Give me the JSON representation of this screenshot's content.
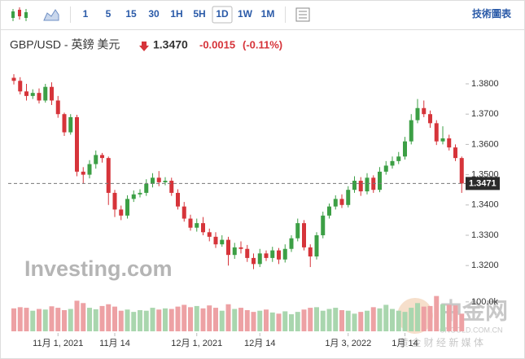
{
  "toolbar": {
    "intervals": [
      "1",
      "5",
      "15",
      "30",
      "1H",
      "5H",
      "1D",
      "1W",
      "1M"
    ],
    "active_interval": 6,
    "tools_label": "技術圖表"
  },
  "header": {
    "symbol": "GBP/USD - 英鎊 美元",
    "price": "1.3470",
    "change": "-0.0015",
    "change_pct": "(-0.11%)"
  },
  "watermarks": {
    "logo": "Investing.com",
    "site": "中金网",
    "site_url": "CNGOLD.COM.CN",
    "site_slogan": "黄 金 财 经 新 媒 体"
  },
  "chart_data": {
    "type": "candlestick",
    "categories": [
      null,
      null,
      null,
      null,
      null,
      null,
      null,
      "11月 1, 2021",
      null,
      null,
      null,
      null,
      null,
      null,
      null,
      null,
      "11月 14",
      null,
      null,
      null,
      null,
      null,
      null,
      null,
      null,
      null,
      null,
      null,
      null,
      "12月 1, 2021",
      null,
      null,
      null,
      null,
      null,
      null,
      null,
      null,
      null,
      "12月 14",
      null,
      null,
      null,
      null,
      null,
      null,
      null,
      null,
      null,
      null,
      null,
      null,
      null,
      "1月 3, 2022",
      null,
      null,
      null,
      null,
      null,
      null,
      null,
      null,
      "1月 14",
      null,
      null,
      null,
      null,
      null,
      null,
      null,
      null,
      null
    ],
    "open": [
      1.382,
      1.381,
      1.3775,
      1.376,
      1.377,
      1.3745,
      1.379,
      1.3745,
      1.37,
      1.364,
      1.369,
      1.351,
      1.35,
      1.3535,
      1.3565,
      1.3555,
      1.344,
      1.3385,
      1.3365,
      1.342,
      1.3435,
      1.344,
      1.347,
      1.349,
      1.3475,
      1.348,
      1.344,
      1.3395,
      1.3355,
      1.3325,
      1.334,
      1.331,
      1.3295,
      1.327,
      1.3285,
      1.3235,
      1.326,
      1.3255,
      1.3225,
      1.3205,
      1.324,
      1.3225,
      1.325,
      1.322,
      1.3255,
      1.329,
      1.334,
      1.326,
      1.323,
      1.33,
      1.3365,
      1.3395,
      1.342,
      1.34,
      1.345,
      1.348,
      1.3445,
      1.349,
      1.345,
      1.351,
      1.353,
      1.3545,
      1.356,
      1.361,
      1.368,
      1.372,
      1.37,
      1.367,
      1.361,
      1.362,
      1.359,
      1.3555
    ],
    "high": [
      1.3832,
      1.3822,
      1.38,
      1.3782,
      1.3785,
      1.38,
      1.3805,
      1.376,
      1.3705,
      1.37,
      1.3698,
      1.3525,
      1.3548,
      1.358,
      1.3572,
      1.356,
      1.345,
      1.3398,
      1.3432,
      1.3448,
      1.3452,
      1.3485,
      1.3505,
      1.3512,
      1.3492,
      1.349,
      1.3452,
      1.341,
      1.3368,
      1.3355,
      1.336,
      1.3322,
      1.331,
      1.33,
      1.3295,
      1.3275,
      1.328,
      1.3268,
      1.324,
      1.3255,
      1.325,
      1.3262,
      1.3258,
      1.327,
      1.33,
      1.3355,
      1.335,
      1.327,
      1.331,
      1.3378,
      1.3405,
      1.3432,
      1.3435,
      1.3462,
      1.3495,
      1.3492,
      1.3505,
      1.3498,
      1.3525,
      1.3545,
      1.356,
      1.3575,
      1.3625,
      1.37,
      1.375,
      1.3745,
      1.3712,
      1.368,
      1.366,
      1.3632,
      1.36,
      1.356
    ],
    "low": [
      1.3798,
      1.3765,
      1.3745,
      1.375,
      1.3735,
      1.3738,
      1.373,
      1.3688,
      1.3628,
      1.3632,
      1.3495,
      1.347,
      1.3488,
      1.352,
      1.354,
      1.34,
      1.336,
      1.335,
      1.3355,
      1.341,
      1.3425,
      1.343,
      1.3458,
      1.3462,
      1.3465,
      1.343,
      1.3385,
      1.3345,
      1.3315,
      1.3312,
      1.33,
      1.328,
      1.3258,
      1.3262,
      1.32,
      1.3222,
      1.324,
      1.3212,
      1.3188,
      1.3195,
      1.3215,
      1.3212,
      1.3205,
      1.321,
      1.3245,
      1.328,
      1.325,
      1.3195,
      1.322,
      1.329,
      1.3355,
      1.3385,
      1.339,
      1.3392,
      1.344,
      1.343,
      1.3435,
      1.344,
      1.3442,
      1.35,
      1.352,
      1.3535,
      1.355,
      1.36,
      1.367,
      1.369,
      1.3655,
      1.3598,
      1.36,
      1.358,
      1.3545,
      1.344
    ],
    "close": [
      1.381,
      1.3775,
      1.376,
      1.377,
      1.3745,
      1.379,
      1.3745,
      1.37,
      1.364,
      1.369,
      1.351,
      1.35,
      1.3535,
      1.3565,
      1.3555,
      1.344,
      1.3385,
      1.3365,
      1.342,
      1.3435,
      1.344,
      1.347,
      1.349,
      1.3475,
      1.348,
      1.344,
      1.3395,
      1.3355,
      1.3325,
      1.334,
      1.331,
      1.3295,
      1.327,
      1.3285,
      1.3235,
      1.326,
      1.3255,
      1.3225,
      1.3205,
      1.324,
      1.3225,
      1.325,
      1.322,
      1.3255,
      1.329,
      1.334,
      1.326,
      1.323,
      1.33,
      1.3365,
      1.3395,
      1.342,
      1.34,
      1.345,
      1.348,
      1.3445,
      1.349,
      1.345,
      1.351,
      1.353,
      1.3545,
      1.356,
      1.361,
      1.368,
      1.372,
      1.37,
      1.367,
      1.361,
      1.362,
      1.359,
      1.3555,
      1.3471
    ],
    "volume": [
      78000,
      82000,
      80000,
      70000,
      76000,
      74000,
      85000,
      80000,
      72000,
      76000,
      104000,
      96000,
      80000,
      75000,
      86000,
      92000,
      84000,
      70000,
      74000,
      66000,
      72000,
      70000,
      80000,
      74000,
      78000,
      76000,
      84000,
      90000,
      82000,
      86000,
      78000,
      88000,
      80000,
      70000,
      92000,
      76000,
      80000,
      72000,
      66000,
      70000,
      74000,
      64000,
      60000,
      68000,
      58000,
      66000,
      74000,
      80000,
      82000,
      70000,
      76000,
      80000,
      72000,
      70000,
      60000,
      66000,
      70000,
      82000,
      78000,
      90000,
      76000,
      70000,
      66000,
      80000,
      96000,
      84000,
      86000,
      120000,
      92000,
      90000,
      88000,
      60000
    ],
    "up_color": "#3c9f45",
    "down_color": "#d6343a",
    "up_volume_color": "#a9d6ae",
    "down_volume_color": "#eda1a4",
    "ylim": [
      1.315,
      1.385
    ],
    "yticks": [
      {
        "value": 1.38,
        "label": "1.3800"
      },
      {
        "value": 1.37,
        "label": "1.3700"
      },
      {
        "value": 1.36,
        "label": "1.3600"
      },
      {
        "value": 1.35,
        "label": "1.3500"
      },
      {
        "value": 1.34,
        "label": "1.3400"
      },
      {
        "value": 1.33,
        "label": "1.3300"
      },
      {
        "value": 1.32,
        "label": "1.3200"
      }
    ],
    "volume_ylim": [
      0,
      130000
    ],
    "volume_ticks": [
      {
        "value": 100000,
        "label": "100.0k"
      }
    ],
    "last_price": 1.3471,
    "grid": false
  }
}
